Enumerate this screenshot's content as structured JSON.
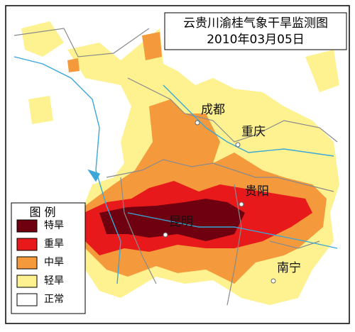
{
  "title": {
    "line1": "云贵川渝桂气象干旱监测图",
    "line2": "2010年03月05日"
  },
  "cities": [
    {
      "label": "成都"
    },
    {
      "label": "重庆"
    },
    {
      "label": "贵阳"
    },
    {
      "label": "昆明"
    },
    {
      "label": "南宁"
    }
  ],
  "legend": {
    "title": "图 例",
    "items": [
      {
        "label": "特旱",
        "color": "#6e0010"
      },
      {
        "label": "重旱",
        "color": "#e8191b"
      },
      {
        "label": "中旱",
        "color": "#f59a3c"
      },
      {
        "label": "轻旱",
        "color": "#fdf28f"
      },
      {
        "label": "正常",
        "color": "#ffffff"
      }
    ]
  }
}
